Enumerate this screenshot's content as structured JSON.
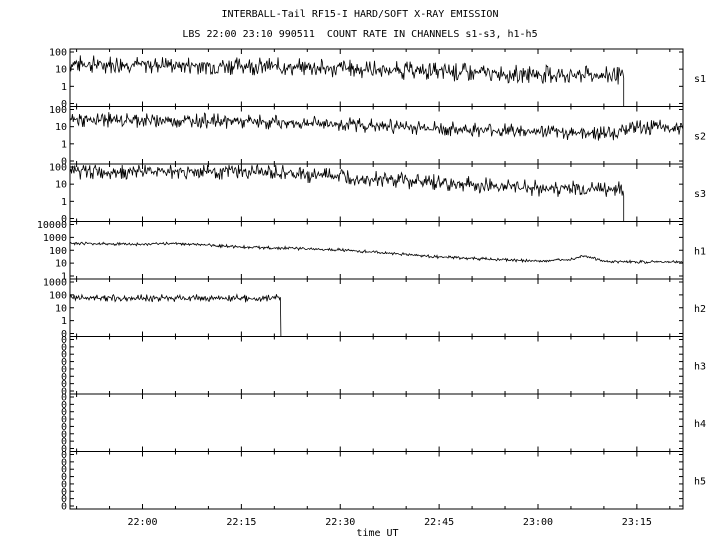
{
  "header": {
    "title": "INTERBALL-Tail RF15-I HARD/SOFT X-RAY EMISSION",
    "subtitle": "LBS 22:00 23:10 990511  COUNT RATE IN CHANNELS s1-s3, h1-h5"
  },
  "chart_data": {
    "type": "line",
    "xlabel": "time UT",
    "x_range": [
      "21:49",
      "23:22"
    ],
    "x_ticks": [
      "22:00",
      "22:15",
      "22:30",
      "22:45",
      "23:00",
      "23:15"
    ],
    "series": [
      {
        "name": "s1",
        "scale": "log",
        "y_ticks": [
          "100",
          "10",
          "1",
          "0"
        ],
        "points": [
          [
            "21:49",
            20
          ],
          [
            "22:00",
            19
          ],
          [
            "22:15",
            16
          ],
          [
            "22:30",
            11
          ],
          [
            "22:45",
            7
          ],
          [
            "23:00",
            5
          ],
          [
            "23:13",
            4
          ]
        ],
        "noise": 0.55,
        "ends_at": "23:13",
        "drop_at_end": true
      },
      {
        "name": "s2",
        "scale": "log",
        "y_ticks": [
          "100",
          "10",
          "1",
          "0"
        ],
        "points": [
          [
            "21:49",
            25
          ],
          [
            "22:05",
            24
          ],
          [
            "22:15",
            20
          ],
          [
            "22:30",
            14
          ],
          [
            "22:45",
            8
          ],
          [
            "23:00",
            5
          ],
          [
            "23:12",
            4
          ],
          [
            "23:13",
            9
          ],
          [
            "23:22",
            9
          ]
        ],
        "noise": 0.45,
        "ends_at": "23:22",
        "drop_at_end": false
      },
      {
        "name": "s3",
        "scale": "log",
        "y_ticks": [
          "100",
          "10",
          "1",
          "0"
        ],
        "points": [
          [
            "21:49",
            55
          ],
          [
            "22:05",
            60
          ],
          [
            "22:15",
            55
          ],
          [
            "22:30",
            30
          ],
          [
            "22:45",
            12
          ],
          [
            "23:00",
            6
          ],
          [
            "23:13",
            5
          ]
        ],
        "noise": 0.5,
        "ends_at": "23:13",
        "drop_at_end": true
      },
      {
        "name": "h1",
        "scale": "log",
        "y_ticks": [
          "10000",
          "1000",
          "100",
          "10",
          "1"
        ],
        "points": [
          [
            "21:49",
            350
          ],
          [
            "22:00",
            280
          ],
          [
            "22:05",
            350
          ],
          [
            "22:15",
            180
          ],
          [
            "22:30",
            110
          ],
          [
            "22:45",
            30
          ],
          [
            "23:00",
            14
          ],
          [
            "23:05",
            20
          ],
          [
            "23:07",
            40
          ],
          [
            "23:10",
            13
          ],
          [
            "23:22",
            12
          ]
        ],
        "noise": 0.12,
        "ends_at": "23:22",
        "drop_at_end": false
      },
      {
        "name": "h2",
        "scale": "log",
        "y_ticks": [
          "1000",
          "100",
          "10",
          "1",
          "0"
        ],
        "points": [
          [
            "21:49",
            60
          ],
          [
            "22:00",
            55
          ],
          [
            "22:10",
            60
          ],
          [
            "22:17",
            50
          ],
          [
            "22:20",
            60
          ],
          [
            "22:21",
            55
          ]
        ],
        "noise": 0.3,
        "ends_at": "22:21",
        "drop_at_end": true
      },
      {
        "name": "h3",
        "scale": "linear",
        "y_ticks": [
          "0",
          "0",
          "0",
          "0",
          "0",
          "0",
          "0",
          "0"
        ],
        "points": []
      },
      {
        "name": "h4",
        "scale": "linear",
        "y_ticks": [
          "0",
          "0",
          "0",
          "0",
          "0",
          "0",
          "0",
          "0"
        ],
        "points": []
      },
      {
        "name": "h5",
        "scale": "linear",
        "y_ticks": [
          "0",
          "0",
          "0",
          "0",
          "0",
          "0",
          "0",
          "0"
        ],
        "points": []
      }
    ]
  }
}
